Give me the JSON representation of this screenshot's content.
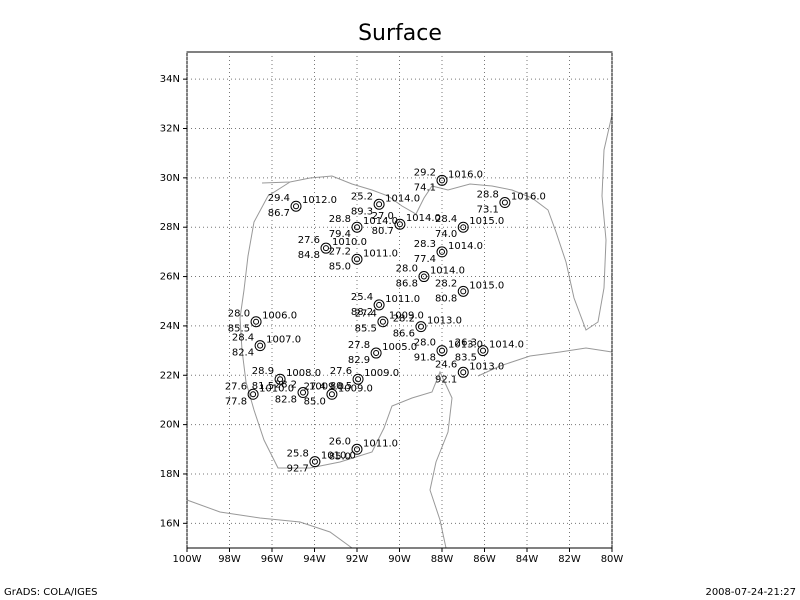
{
  "chart_data": {
    "type": "station-map",
    "title": "Surface",
    "xlim": [
      -100,
      -80
    ],
    "ylim": [
      15,
      35.1
    ],
    "xticks": [
      {
        "value": -100,
        "label": "100W"
      },
      {
        "value": -98,
        "label": "98W"
      },
      {
        "value": -96,
        "label": "96W"
      },
      {
        "value": -94,
        "label": "94W"
      },
      {
        "value": -92,
        "label": "92W"
      },
      {
        "value": -90,
        "label": "90W"
      },
      {
        "value": -88,
        "label": "88W"
      },
      {
        "value": -86,
        "label": "86W"
      },
      {
        "value": -84,
        "label": "84W"
      },
      {
        "value": -82,
        "label": "82W"
      },
      {
        "value": -80,
        "label": "80W"
      }
    ],
    "yticks": [
      {
        "value": 16,
        "label": "16N"
      },
      {
        "value": 18,
        "label": "18N"
      },
      {
        "value": 20,
        "label": "20N"
      },
      {
        "value": 22,
        "label": "22N"
      },
      {
        "value": 24,
        "label": "24N"
      },
      {
        "value": 26,
        "label": "26N"
      },
      {
        "value": 28,
        "label": "28N"
      },
      {
        "value": 30,
        "label": "30N"
      },
      {
        "value": 32,
        "label": "32N"
      },
      {
        "value": 34,
        "label": "34N"
      }
    ],
    "grid": true,
    "stations": [
      {
        "lon": -94.87,
        "lat": 28.85,
        "temp": "29.4",
        "dew": "86.7",
        "pres": "1012.0"
      },
      {
        "lon": -90.96,
        "lat": 28.93,
        "temp": "25.2",
        "dew": "89.3",
        "pres": "1014.0"
      },
      {
        "lon": -88.0,
        "lat": 29.9,
        "temp": "29.2",
        "dew": "74.1",
        "pres": "1016.0"
      },
      {
        "lon": -85.04,
        "lat": 29.0,
        "temp": "28.8",
        "dew": "73.1",
        "pres": "1016.0"
      },
      {
        "lon": -92.0,
        "lat": 28.0,
        "temp": "28.8",
        "dew": "79.4",
        "pres": "1014.0"
      },
      {
        "lon": -89.98,
        "lat": 28.12,
        "temp": "27.0",
        "dew": "80.7",
        "pres": "1014.0"
      },
      {
        "lon": -87.0,
        "lat": 28.0,
        "temp": "28.4",
        "dew": "74.0",
        "pres": "1015.0"
      },
      {
        "lon": -93.46,
        "lat": 27.15,
        "temp": "27.6",
        "dew": "84.8",
        "pres": "1010.0"
      },
      {
        "lon": -92.0,
        "lat": 26.7,
        "temp": "27.2",
        "dew": "85.0",
        "pres": "1011.0"
      },
      {
        "lon": -88.0,
        "lat": 27.0,
        "temp": "28.3",
        "dew": "77.4",
        "pres": "1014.0"
      },
      {
        "lon": -88.85,
        "lat": 26.0,
        "temp": "28.0",
        "dew": "86.8",
        "pres": "1014.0"
      },
      {
        "lon": -87.0,
        "lat": 25.4,
        "temp": "28.2",
        "dew": "80.8",
        "pres": "1015.0"
      },
      {
        "lon": -90.96,
        "lat": 24.85,
        "temp": "25.4",
        "dew": "88.2",
        "pres": "1011.0"
      },
      {
        "lon": -96.75,
        "lat": 24.17,
        "temp": "28.0",
        "dew": "85.5",
        "pres": "1006.0"
      },
      {
        "lon": -90.78,
        "lat": 24.17,
        "temp": "27.4",
        "dew": "85.5",
        "pres": "1009.0"
      },
      {
        "lon": -88.99,
        "lat": 23.97,
        "temp": "28.2",
        "dew": "86.6",
        "pres": "1013.0"
      },
      {
        "lon": -96.56,
        "lat": 23.2,
        "temp": "28.4",
        "dew": "82.4",
        "pres": "1007.0"
      },
      {
        "lon": -91.1,
        "lat": 22.9,
        "temp": "27.8",
        "dew": "82.9",
        "pres": "1005.0"
      },
      {
        "lon": -88.0,
        "lat": 23.0,
        "temp": "28.0",
        "dew": "91.8",
        "pres": "1013.0"
      },
      {
        "lon": -86.07,
        "lat": 23.0,
        "temp": "26.3",
        "dew": "83.5",
        "pres": "1014.0"
      },
      {
        "lon": -87.0,
        "lat": 22.12,
        "temp": "24.6",
        "dew": "92.1",
        "pres": "1013.0"
      },
      {
        "lon": -95.62,
        "lat": 21.84,
        "temp": "28.9",
        "dew": "81.5",
        "pres": "1008.0"
      },
      {
        "lon": -91.95,
        "lat": 21.84,
        "temp": "27.6",
        "dew": "80.5",
        "pres": "1009.0"
      },
      {
        "lon": -96.89,
        "lat": 21.23,
        "temp": "27.6",
        "dew": "77.8",
        "pres": "1010.0"
      },
      {
        "lon": -94.54,
        "lat": 21.3,
        "temp": "28.2",
        "dew": "82.8",
        "pres": "1009.0"
      },
      {
        "lon": -93.18,
        "lat": 21.23,
        "temp": "27.4",
        "dew": "85.0",
        "pres": "1009.0"
      },
      {
        "lon": -92.0,
        "lat": 19.0,
        "temp": "26.0",
        "dew": "85.0",
        "pres": "1011.0"
      },
      {
        "lon": -93.98,
        "lat": 18.5,
        "temp": "25.8",
        "dew": "92.7",
        "pres": "1010.0"
      }
    ]
  },
  "footer": {
    "left": "GrADS: COLA/IGES",
    "right": "2008-07-24-21:27"
  }
}
